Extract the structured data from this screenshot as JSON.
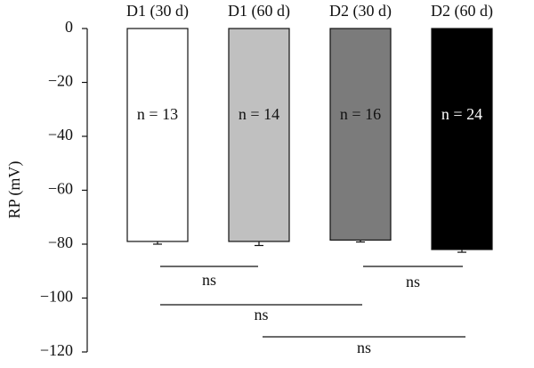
{
  "chart_data": {
    "type": "bar",
    "y_label": "RP (mV)",
    "categories": [
      "D1 (30 d)",
      "D1 (60 d)",
      "D2 (30 d)",
      "D2 (60 d)"
    ],
    "series": [
      {
        "values": [
          -79,
          -79,
          -78.5,
          -82
        ]
      }
    ],
    "errors": [
      1,
      1.5,
      0.7,
      1
    ],
    "colors": [
      "#ffffff",
      "#c0c0c0",
      "#7b7b7b",
      "#000000"
    ],
    "bar_labels": [
      "n = 13",
      "n = 14",
      "n = 16",
      "n = 24"
    ],
    "comparisons": [
      {
        "label": "ns"
      },
      {
        "label": "ns"
      },
      {
        "label": "ns"
      },
      {
        "label": "ns"
      }
    ],
    "ylim": [
      0,
      -120
    ],
    "yticks": [
      0,
      {
        "value": -20,
        "label": "−20"
      },
      {
        "value": -40,
        "label": "−40"
      },
      {
        "value": -60,
        "label": "−60"
      },
      {
        "value": -80,
        "label": "−80"
      },
      {
        "value": -100,
        "label": "−100"
      },
      {
        "value": -120,
        "label": "−120"
      }
    ]
  }
}
